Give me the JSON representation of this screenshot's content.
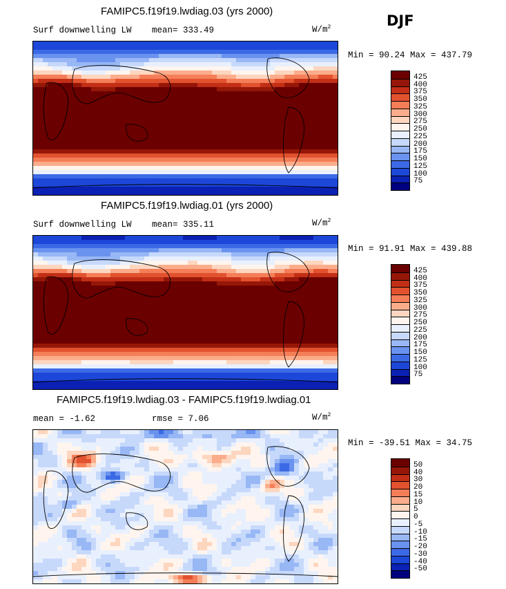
{
  "season": "DJF",
  "units": {
    "text": "W/m",
    "sup": "2"
  },
  "panels": [
    {
      "id": "test",
      "title": "FAMIPC5.f19f19.lwdiag.03 (yrs 2000)",
      "left_label": "Surf downwelling LW",
      "center_label": "mean= 333.49",
      "minmax": "Min =  90.24 Max = 437.79"
    },
    {
      "id": "control",
      "title": "FAMIPC5.f19f19.lwdiag.01 (yrs 2000)",
      "left_label": "Surf downwelling LW",
      "center_label": "mean= 335.11",
      "minmax": "Min =  91.91 Max = 439.88"
    },
    {
      "id": "diff",
      "title": "FAMIPC5.f19f19.lwdiag.03 - FAMIPC5.f19f19.lwdiag.01",
      "left_label": "mean =  -1.62",
      "center_label": "rmse =   7.06",
      "minmax": "Min = -39.51 Max =  34.75"
    }
  ],
  "chart_data": [
    {
      "type": "heatmap",
      "title": "FAMIPC5.f19f19.lwdiag.03 (yrs 2000)",
      "variable": "Surf downwelling LW",
      "units": "W/m2",
      "mean": 333.49,
      "min": 90.24,
      "max": 437.79,
      "colorbar_levels": [
        75,
        100,
        125,
        150,
        175,
        200,
        225,
        250,
        275,
        300,
        325,
        350,
        375,
        400,
        425
      ],
      "colorbar_colors": [
        "#00007f",
        "#0b21b3",
        "#1d47d8",
        "#3c6ae6",
        "#6a93ef",
        "#98b7f5",
        "#c7d9fb",
        "#e9f0fd",
        "#fff5ee",
        "#fdd6bf",
        "#fbad8b",
        "#f47e58",
        "#e2522f",
        "#c22f16",
        "#961708",
        "#6b0000"
      ]
    },
    {
      "type": "heatmap",
      "title": "FAMIPC5.f19f19.lwdiag.01 (yrs 2000)",
      "variable": "Surf downwelling LW",
      "units": "W/m2",
      "mean": 335.11,
      "min": 91.91,
      "max": 439.88,
      "colorbar_levels": [
        75,
        100,
        125,
        150,
        175,
        200,
        225,
        250,
        275,
        300,
        325,
        350,
        375,
        400,
        425
      ],
      "colorbar_colors": [
        "#00007f",
        "#0b21b3",
        "#1d47d8",
        "#3c6ae6",
        "#6a93ef",
        "#98b7f5",
        "#c7d9fb",
        "#e9f0fd",
        "#fff5ee",
        "#fdd6bf",
        "#fbad8b",
        "#f47e58",
        "#e2522f",
        "#c22f16",
        "#961708",
        "#6b0000"
      ]
    },
    {
      "type": "heatmap",
      "title": "FAMIPC5.f19f19.lwdiag.03 - FAMIPC5.f19f19.lwdiag.01",
      "variable": "difference",
      "units": "W/m2",
      "mean": -1.62,
      "rmse": 7.06,
      "min": -39.51,
      "max": 34.75,
      "colorbar_levels": [
        -50,
        -40,
        -30,
        -20,
        -15,
        -10,
        -5,
        0,
        5,
        10,
        15,
        20,
        30,
        40,
        50
      ],
      "colorbar_colors": [
        "#00007f",
        "#0b21b3",
        "#1d47d8",
        "#3c6ae6",
        "#6a93ef",
        "#98b7f5",
        "#c7d9fb",
        "#e9f0fd",
        "#fff5ee",
        "#fdd6bf",
        "#fbad8b",
        "#f47e58",
        "#e2522f",
        "#c22f16",
        "#961708",
        "#6b0000"
      ]
    }
  ]
}
